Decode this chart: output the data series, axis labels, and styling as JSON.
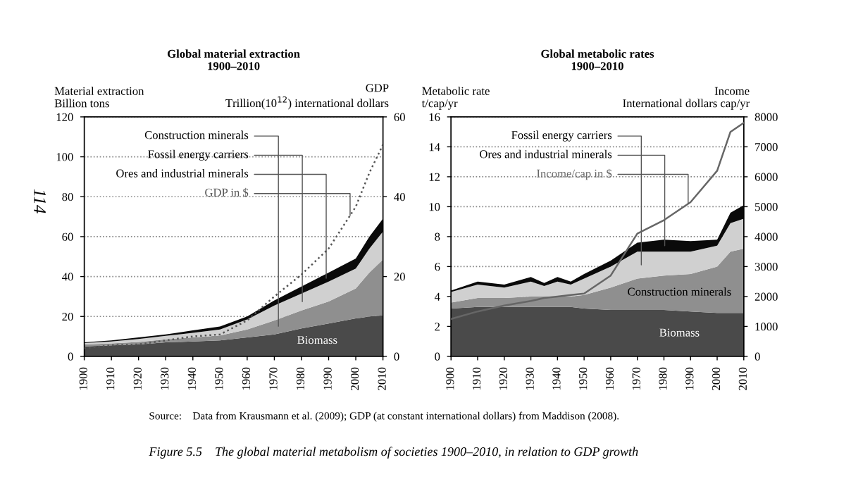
{
  "chart_data": [
    {
      "type": "area",
      "stacked": true,
      "title": "Global material extraction\n1900–2010",
      "ylabel": "Material extraction\nBillion tons",
      "y2label": "GDP\nTrillion(10$^{12}$) international dollars",
      "x": [
        1900,
        1910,
        1920,
        1930,
        1940,
        1950,
        1960,
        1970,
        1980,
        1990,
        2000,
        2005,
        2010
      ],
      "series": [
        {
          "name": "Biomass",
          "color": "#4a4a4a",
          "values": [
            5,
            5.5,
            6,
            7,
            7.5,
            8,
            9.5,
            11,
            14,
            16.5,
            19,
            20,
            20.5
          ]
        },
        {
          "name": "Construction minerals",
          "color": "#8f8f8f",
          "values": [
            1,
            1,
            1.2,
            1.5,
            2,
            2.5,
            4,
            7,
            9,
            11,
            15,
            22,
            28
          ]
        },
        {
          "name": "Fossil energy carriers",
          "color": "#d0d0d0",
          "values": [
            0.7,
            1,
            1.5,
            1.8,
            2.3,
            3,
            5,
            7.5,
            8.5,
            10,
            10,
            12,
            14
          ]
        },
        {
          "name": "Ores and industrial minerals",
          "color": "#0a0a0a",
          "values": [
            0.3,
            0.5,
            0.8,
            0.7,
            1.2,
            1.5,
            1.5,
            2.5,
            3.5,
            4.5,
            5,
            6,
            6.5
          ]
        },
        {
          "name": "GDP in $",
          "type": "line",
          "axis": "y2",
          "color": "#555555",
          "line_style": "dotted",
          "values": [
            2,
            2.8,
            3,
            4,
            5,
            5.5,
            9,
            15,
            20.5,
            27,
            37.5,
            46,
            53
          ]
        }
      ],
      "xlim": [
        1900,
        2010
      ],
      "xticks": [
        1900,
        1910,
        1920,
        1930,
        1940,
        1950,
        1960,
        1970,
        1980,
        1990,
        2000,
        2010
      ],
      "ylim": [
        0,
        120
      ],
      "yticks": [
        0,
        20,
        40,
        60,
        80,
        100,
        120
      ],
      "y2lim": [
        0,
        60
      ],
      "y2ticks": [
        0,
        20,
        40,
        60
      ],
      "grid": "y",
      "annotations": [
        "114"
      ]
    },
    {
      "type": "area",
      "stacked": true,
      "title": "Global metabolic rates\n1900–2010",
      "ylabel": "Metabolic rate\nt/cap/yr",
      "y2label": "Income\nInternational dollars cap/yr",
      "x": [
        1900,
        1910,
        1920,
        1930,
        1935,
        1940,
        1945,
        1950,
        1960,
        1970,
        1980,
        1990,
        2000,
        2005,
        2010
      ],
      "series": [
        {
          "name": "Biomass",
          "color": "#4a4a4a",
          "values": [
            3.2,
            3.3,
            3.3,
            3.3,
            3.3,
            3.3,
            3.3,
            3.2,
            3.1,
            3.1,
            3.1,
            3.0,
            2.9,
            2.9,
            2.9
          ]
        },
        {
          "name": "Construction minerals",
          "color": "#8f8f8f",
          "values": [
            0.4,
            0.6,
            0.6,
            0.7,
            0.7,
            0.7,
            0.7,
            0.9,
            1.5,
            2.1,
            2.3,
            2.5,
            3.1,
            4.1,
            4.3
          ]
        },
        {
          "name": "Fossil energy carriers",
          "color": "#d0d0d0",
          "values": [
            0.7,
            0.9,
            0.7,
            1.0,
            0.7,
            1.0,
            0.8,
            1.1,
            1.4,
            1.8,
            1.6,
            1.5,
            1.4,
            1.9,
            2.0
          ]
        },
        {
          "name": "Ores and industrial minerals",
          "color": "#0a0a0a",
          "values": [
            0.1,
            0.2,
            0.2,
            0.3,
            0.2,
            0.3,
            0.2,
            0.3,
            0.4,
            0.6,
            0.8,
            0.7,
            0.4,
            0.7,
            0.9
          ]
        },
        {
          "name": "Income/cap in $",
          "type": "line",
          "axis": "y2",
          "color": "#666666",
          "line_style": "solid",
          "values": [
            1250,
            1500,
            1700,
            1850,
            1950,
            2000,
            2050,
            2100,
            2700,
            4100,
            4550,
            5150,
            6200,
            7500,
            7800
          ]
        }
      ],
      "xlim": [
        1900,
        2010
      ],
      "xticks": [
        1900,
        1910,
        1920,
        1930,
        1940,
        1950,
        1960,
        1970,
        1980,
        1990,
        2000,
        2010
      ],
      "ylim": [
        0,
        16
      ],
      "yticks": [
        0,
        2,
        4,
        6,
        8,
        10,
        12,
        14,
        16
      ],
      "y2lim": [
        0,
        8000
      ],
      "y2ticks": [
        0,
        1000,
        2000,
        3000,
        4000,
        5000,
        6000,
        7000,
        8000
      ],
      "grid": "y",
      "annotations": [
        "Source:    Data from Krausmann et al. (2009); GDP (at constant international dollars) from Maddison (2008).",
        "Figure 5.5    The global material metabolism of societies 1900–2010, in relation to GDP growth"
      ]
    }
  ]
}
